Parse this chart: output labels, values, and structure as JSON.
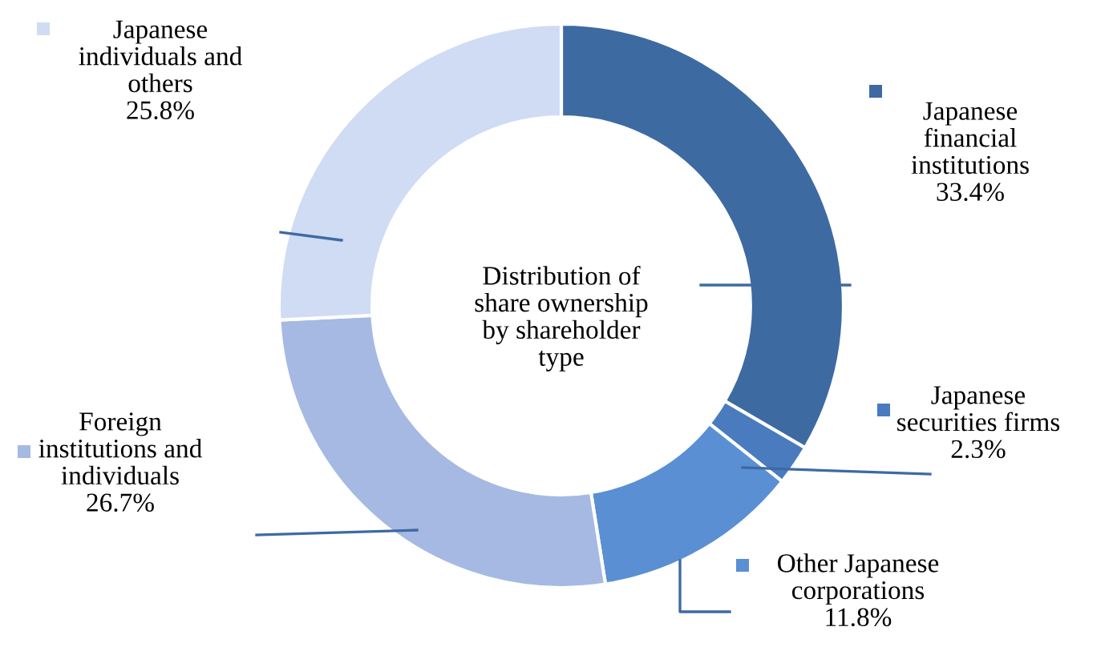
{
  "chart_data": {
    "type": "donut",
    "title": "Distribution of\nshare ownership\nby shareholder\ntype",
    "categories": [
      "Japanese\nfinancial\ninstitutions",
      "Japanese\nsecurities firms",
      "Other Japanese\ncorporations",
      "Foreign\ninstitutions and\nindividuals",
      "Japanese\nindividuals and\nothers"
    ],
    "values": [
      33.4,
      2.3,
      11.8,
      26.7,
      25.8
    ],
    "value_labels": [
      "33.4%",
      "2.3%",
      "11.8%",
      "26.7%",
      "25.8%"
    ],
    "colors": [
      "#3e6aa2",
      "#4a7bbf",
      "#5a8fd3",
      "#a5b9e3",
      "#cfdcf3"
    ],
    "legend": true
  }
}
